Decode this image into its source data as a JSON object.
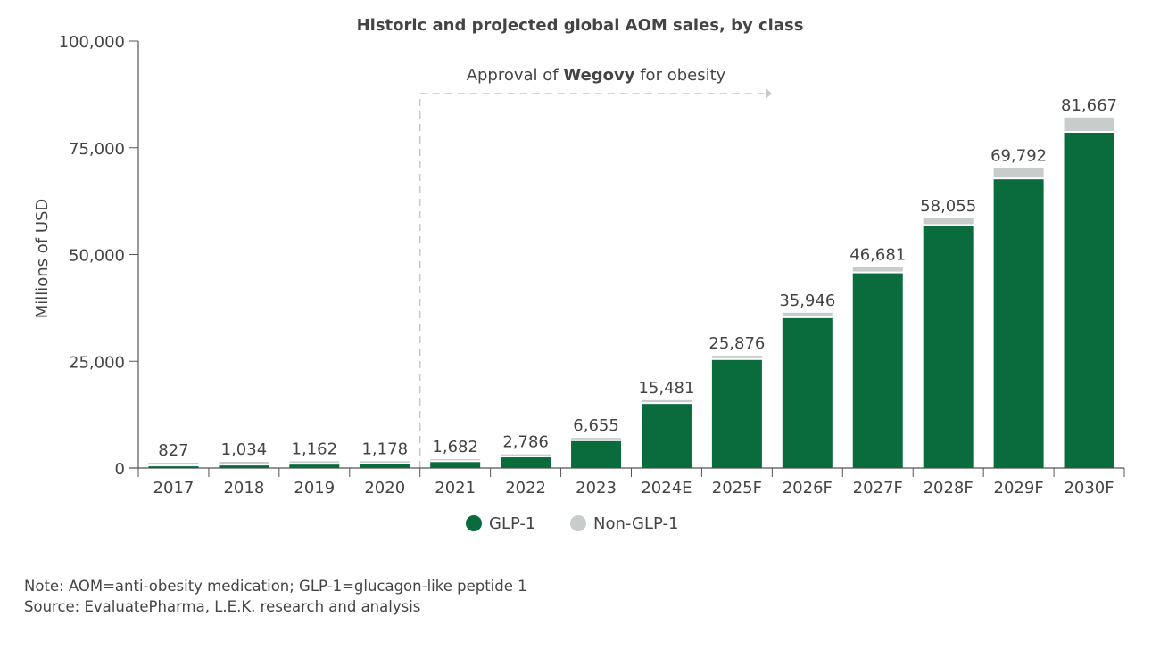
{
  "chart_data": {
    "type": "bar",
    "stacked": true,
    "title": "Historic and projected global AOM sales, by class",
    "xlabel": "",
    "ylabel": "Millions of USD",
    "ylim": [
      0,
      100000
    ],
    "yticks": [
      0,
      25000,
      50000,
      75000,
      100000
    ],
    "ytick_labels": [
      "0",
      "25,000",
      "50,000",
      "75,000",
      "100,000"
    ],
    "grid": false,
    "legend_position": "bottom",
    "categories": [
      "2017",
      "2018",
      "2019",
      "2020",
      "2021",
      "2022",
      "2023",
      "2024E",
      "2025F",
      "2026F",
      "2027F",
      "2028F",
      "2029F",
      "2030F"
    ],
    "total_labels": [
      "827",
      "1,034",
      "1,162",
      "1,178",
      "1,682",
      "2,786",
      "6,655",
      "15,481",
      "25,876",
      "35,946",
      "46,681",
      "58,055",
      "69,792",
      "81,667"
    ],
    "totals": [
      827,
      1034,
      1162,
      1178,
      1682,
      2786,
      6655,
      15481,
      25876,
      35946,
      46681,
      58055,
      69792,
      81667
    ],
    "series": [
      {
        "name": "GLP-1",
        "color": "#0a6b3d",
        "values": [
          400,
          600,
          800,
          850,
          1400,
          2500,
          6300,
          15000,
          25300,
          35100,
          45600,
          56700,
          67600,
          78500
        ]
      },
      {
        "name": "Non-GLP-1",
        "color": "#c6cdcb",
        "values": [
          427,
          434,
          362,
          328,
          282,
          286,
          355,
          481,
          576,
          846,
          1081,
          1355,
          2192,
          3167
        ]
      }
    ],
    "annotation": {
      "before": "Approval of ",
      "bold": "Wegovy",
      "after": " for obesity",
      "from_category": "2021"
    }
  },
  "notes": {
    "note": "Note: AOM=anti-obesity medication; GLP-1=glucagon-like peptide 1",
    "source": "Source: EvaluatePharma, L.E.K. research and analysis"
  }
}
